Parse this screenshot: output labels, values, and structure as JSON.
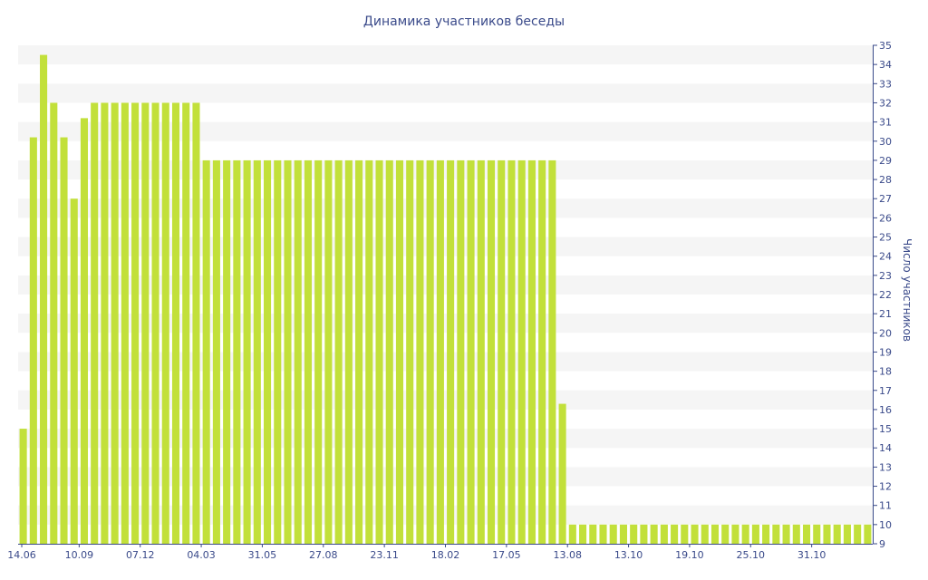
{
  "chart_data": {
    "type": "bar",
    "title": "Динамика участников беседы",
    "ylabel": "Число участников",
    "xlabel": "",
    "ylim": [
      9,
      35
    ],
    "yticks": [
      9,
      10,
      11,
      12,
      13,
      14,
      15,
      16,
      17,
      18,
      19,
      20,
      21,
      22,
      23,
      24,
      25,
      26,
      27,
      28,
      29,
      30,
      31,
      32,
      33,
      34,
      35
    ],
    "xtick_labels": [
      "14.06",
      "10.09",
      "07.12",
      "04.03",
      "31.05",
      "27.08",
      "23.11",
      "18.02",
      "17.05",
      "13.08",
      "13.10",
      "19.10",
      "25.10",
      "31.10"
    ],
    "values": [
      15,
      30.2,
      34.5,
      32,
      30.2,
      27,
      31.2,
      32,
      32,
      32,
      32,
      32,
      32,
      32,
      32,
      32,
      32,
      32,
      29,
      29,
      29,
      29,
      29,
      29,
      29,
      29,
      29,
      29,
      29,
      29,
      29,
      29,
      29,
      29,
      29,
      29,
      29,
      29,
      29,
      29,
      29,
      29,
      29,
      29,
      29,
      29,
      29,
      29,
      29,
      29,
      29,
      29,
      29,
      16.3,
      10,
      10,
      10,
      10,
      10,
      10,
      10,
      10,
      10,
      10,
      10,
      10,
      10,
      10,
      10,
      10,
      10,
      10,
      10,
      10,
      10,
      10,
      10,
      10,
      10,
      10,
      10,
      10,
      10,
      10
    ],
    "bar_color": "#c2e03a",
    "band_color": "#f5f5f5",
    "axis_text_color": "#3a4a8a",
    "grid": "alternating bands",
    "y_axis_position": "right"
  }
}
